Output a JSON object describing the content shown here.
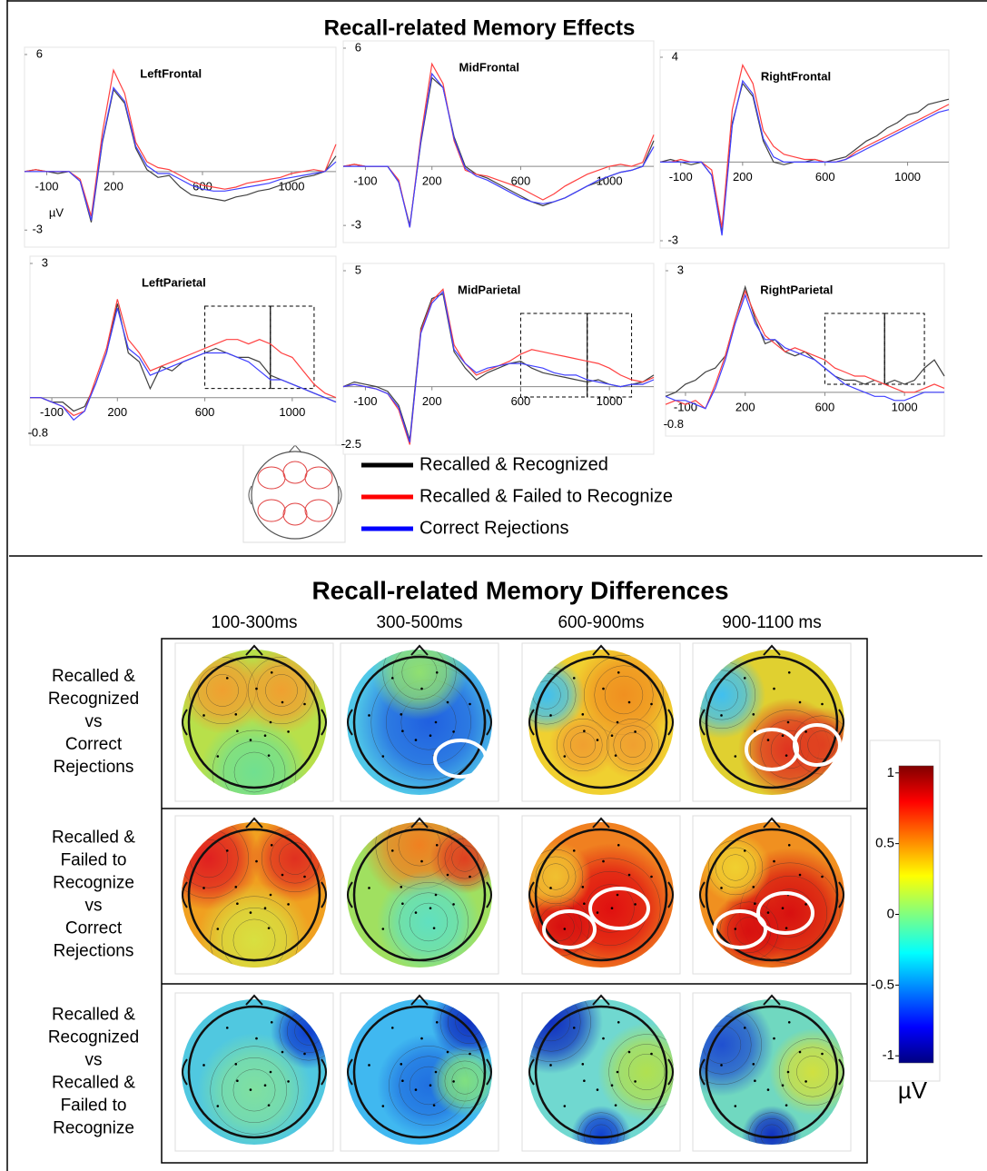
{
  "title": "Recall-related Memory Effects",
  "legend": [
    {
      "name": "Recalled & Recognized",
      "color": "#000000"
    },
    {
      "name": "Recalled & Failed to Recognize",
      "color": "#ff0000"
    },
    {
      "name": "Correct Rejections",
      "color": "#0000ff"
    }
  ],
  "chart_data": [
    {
      "type": "line",
      "title": "LeftFrontal",
      "y_label": "µV",
      "x": [
        -200,
        -150,
        -100,
        -50,
        0,
        50,
        100,
        150,
        200,
        250,
        300,
        350,
        400,
        450,
        500,
        550,
        600,
        650,
        700,
        750,
        800,
        850,
        900,
        950,
        1000,
        1050,
        1100,
        1150,
        1200
      ],
      "xlim": [
        -200,
        1200
      ],
      "xticks": [
        -100,
        200,
        600,
        1000
      ],
      "ylim": [
        -3.5,
        6
      ],
      "yticks": [
        6,
        -3
      ],
      "series": [
        {
          "color": "#404040",
          "values": [
            0,
            0.1,
            0,
            -0.1,
            0,
            -0.5,
            -2.6,
            1.5,
            4.2,
            3.5,
            1.2,
            0.1,
            -0.3,
            -0.2,
            -0.8,
            -1.2,
            -1.3,
            -1.4,
            -1.5,
            -1.3,
            -1.2,
            -1.0,
            -0.9,
            -0.7,
            -0.5,
            -0.3,
            -0.2,
            0,
            0.8
          ]
        },
        {
          "color": "#ff4040",
          "values": [
            0,
            0.1,
            0,
            0,
            0,
            -0.4,
            -2.3,
            2.0,
            5.2,
            4.0,
            1.5,
            0.5,
            0.2,
            0.1,
            -0.2,
            -0.5,
            -0.7,
            -0.8,
            -0.9,
            -0.8,
            -0.6,
            -0.5,
            -0.4,
            -0.3,
            -0.1,
            0,
            0.1,
            0,
            1.4
          ]
        },
        {
          "color": "#4040ff",
          "values": [
            0,
            0,
            0,
            0,
            0,
            -0.5,
            -2.5,
            1.6,
            4.3,
            3.6,
            1.3,
            0.3,
            -0.1,
            -0.1,
            -0.4,
            -0.7,
            -0.9,
            -1.0,
            -1.0,
            -0.9,
            -0.8,
            -0.7,
            -0.6,
            -0.4,
            -0.3,
            -0.2,
            -0.1,
            0,
            0.5
          ]
        }
      ]
    },
    {
      "type": "line",
      "title": "MidFrontal",
      "x": [
        -200,
        -150,
        -100,
        -50,
        0,
        50,
        100,
        150,
        200,
        250,
        300,
        350,
        400,
        450,
        500,
        550,
        600,
        650,
        700,
        750,
        800,
        850,
        900,
        950,
        1000,
        1050,
        1100,
        1150,
        1200
      ],
      "xlim": [
        -200,
        1200
      ],
      "xticks": [
        -100,
        200,
        600,
        1000
      ],
      "ylim": [
        -3.5,
        6
      ],
      "yticks": [
        6,
        -3
      ],
      "series": [
        {
          "color": "#404040",
          "values": [
            0,
            0.1,
            0,
            0,
            0,
            -0.8,
            -3.0,
            1.2,
            4.5,
            4.0,
            1.5,
            0,
            -0.4,
            -0.6,
            -0.9,
            -1.2,
            -1.5,
            -1.8,
            -2.0,
            -1.8,
            -1.6,
            -1.3,
            -1.0,
            -0.8,
            -0.5,
            -0.3,
            -0.2,
            0,
            1.3
          ]
        },
        {
          "color": "#ff4040",
          "values": [
            0,
            0.1,
            0,
            0,
            0,
            -0.7,
            -3.1,
            1.5,
            5.2,
            4.2,
            1.3,
            -0.2,
            -0.4,
            -0.5,
            -0.7,
            -0.9,
            -1.1,
            -1.4,
            -1.7,
            -1.4,
            -1.0,
            -0.7,
            -0.4,
            -0.2,
            0,
            0.1,
            0,
            0.2,
            1.6
          ]
        },
        {
          "color": "#4040ff",
          "values": [
            0,
            0,
            0,
            0,
            0,
            -0.8,
            -3.1,
            1.3,
            4.7,
            4.0,
            1.4,
            -0.1,
            -0.5,
            -0.7,
            -1.0,
            -1.3,
            -1.6,
            -1.8,
            -1.9,
            -1.8,
            -1.6,
            -1.3,
            -1.0,
            -0.7,
            -0.5,
            -0.3,
            -0.2,
            0,
            1.0
          ]
        }
      ]
    },
    {
      "type": "line",
      "title": "RightFrontal",
      "x": [
        -200,
        -150,
        -100,
        -50,
        0,
        50,
        100,
        150,
        200,
        250,
        300,
        350,
        400,
        450,
        500,
        550,
        600,
        650,
        700,
        750,
        800,
        850,
        900,
        950,
        1000,
        1050,
        1100,
        1150,
        1200
      ],
      "xlim": [
        -200,
        1200
      ],
      "xticks": [
        -100,
        200,
        600,
        1000
      ],
      "ylim": [
        -3,
        4
      ],
      "yticks": [
        4,
        -3
      ],
      "series": [
        {
          "color": "#404040",
          "values": [
            0,
            0.1,
            0,
            -0.1,
            0,
            -0.5,
            -2.7,
            1.5,
            3.0,
            2.5,
            0.8,
            0,
            -0.1,
            0,
            0,
            0.1,
            0,
            0.1,
            0.2,
            0.5,
            0.8,
            1.0,
            1.3,
            1.5,
            1.8,
            1.9,
            2.2,
            2.3,
            2.4
          ]
        },
        {
          "color": "#ff4040",
          "values": [
            0,
            0,
            0.1,
            0,
            0,
            -0.3,
            -2.5,
            2.0,
            3.7,
            3.0,
            1.2,
            0.6,
            0.3,
            0.2,
            0.1,
            0.1,
            0,
            0,
            0.1,
            0.4,
            0.6,
            0.8,
            1.0,
            1.2,
            1.4,
            1.6,
            1.8,
            2.0,
            2.2
          ]
        },
        {
          "color": "#4040ff",
          "values": [
            0,
            0,
            0,
            0,
            0,
            -0.5,
            -2.8,
            1.4,
            3.1,
            2.6,
            0.9,
            0.2,
            0,
            0,
            0,
            0,
            0,
            0,
            0.1,
            0.3,
            0.5,
            0.7,
            0.9,
            1.1,
            1.3,
            1.5,
            1.7,
            1.9,
            2.0
          ]
        }
      ]
    },
    {
      "type": "line",
      "title": "LeftParietal",
      "x": [
        -200,
        -150,
        -100,
        -50,
        0,
        50,
        100,
        150,
        200,
        250,
        300,
        350,
        400,
        450,
        500,
        550,
        600,
        650,
        700,
        750,
        800,
        850,
        900,
        950,
        1000,
        1050,
        1100,
        1150,
        1200
      ],
      "xlim": [
        -200,
        1200
      ],
      "xticks": [
        -100,
        200,
        600,
        1000
      ],
      "ylim": [
        -0.9,
        3
      ],
      "yticks": [
        3,
        -0.8
      ],
      "highlight_windows": [
        [
          600,
          900
        ],
        [
          900,
          1100
        ]
      ],
      "series": [
        {
          "color": "#404040",
          "values": [
            0,
            0,
            -0.1,
            -0.1,
            -0.3,
            -0.2,
            0.3,
            1.0,
            2.1,
            1.0,
            0.8,
            0.2,
            0.7,
            0.6,
            0.8,
            0.9,
            1.0,
            1.1,
            1.0,
            0.9,
            0.9,
            0.8,
            0.5,
            0.4,
            0.3,
            0.2,
            0.1,
            0,
            -0.1
          ]
        },
        {
          "color": "#ff4040",
          "values": [
            0,
            0,
            -0.1,
            -0.2,
            -0.4,
            -0.3,
            0.4,
            1.1,
            2.2,
            1.3,
            1.0,
            0.6,
            0.7,
            0.8,
            0.9,
            1.0,
            1.1,
            1.2,
            1.3,
            1.3,
            1.2,
            1.3,
            1.2,
            1.0,
            0.9,
            0.6,
            0.3,
            0.1,
            0
          ]
        },
        {
          "color": "#4040ff",
          "values": [
            0,
            0,
            -0.1,
            -0.2,
            -0.5,
            -0.3,
            0.3,
            1.0,
            2.0,
            1.1,
            0.9,
            0.5,
            0.6,
            0.7,
            0.8,
            0.9,
            1.0,
            1.0,
            1.0,
            0.9,
            0.8,
            0.6,
            0.4,
            0.4,
            0.3,
            0.2,
            0.1,
            0,
            -0.1
          ]
        }
      ]
    },
    {
      "type": "line",
      "title": "MidParietal",
      "x": [
        -200,
        -150,
        -100,
        -50,
        0,
        50,
        100,
        150,
        200,
        250,
        300,
        350,
        400,
        450,
        500,
        550,
        600,
        650,
        700,
        750,
        800,
        850,
        900,
        950,
        1000,
        1050,
        1100,
        1150,
        1200
      ],
      "xlim": [
        -200,
        1200
      ],
      "xticks": [
        -100,
        200,
        600,
        1000
      ],
      "ylim": [
        -2.6,
        5
      ],
      "yticks": [
        5,
        -2.5
      ],
      "highlight_windows": [
        [
          600,
          900
        ],
        [
          900,
          1100
        ]
      ],
      "series": [
        {
          "color": "#404040",
          "values": [
            0,
            0.2,
            0.1,
            0,
            -0.2,
            -0.8,
            -2.3,
            2.5,
            3.8,
            4.0,
            1.5,
            0.8,
            0.3,
            0.6,
            0.8,
            1.0,
            1.1,
            0.8,
            0.6,
            0.5,
            0.4,
            0.3,
            0.2,
            0.3,
            0.1,
            0,
            0.1,
            0.2,
            0.5
          ]
        },
        {
          "color": "#ff4040",
          "values": [
            0,
            0.1,
            0,
            -0.1,
            -0.3,
            -1.0,
            -2.5,
            2.4,
            3.7,
            4.2,
            1.8,
            1.0,
            0.5,
            0.7,
            0.9,
            1.1,
            1.4,
            1.6,
            1.5,
            1.4,
            1.3,
            1.2,
            1.1,
            1.0,
            0.8,
            0.5,
            0.3,
            0.2,
            0.4
          ]
        },
        {
          "color": "#4040ff",
          "values": [
            0,
            0.1,
            0,
            -0.1,
            -0.3,
            -0.9,
            -2.4,
            2.3,
            3.6,
            4.1,
            1.6,
            1.0,
            0.6,
            0.8,
            0.9,
            1.0,
            1.0,
            0.9,
            0.8,
            0.6,
            0.5,
            0.5,
            0.3,
            0.2,
            0.1,
            0,
            0.1,
            0.1,
            0.3
          ]
        }
      ]
    },
    {
      "type": "line",
      "title": "RightParietal",
      "x": [
        -200,
        -150,
        -100,
        -50,
        0,
        50,
        100,
        150,
        200,
        250,
        300,
        350,
        400,
        450,
        500,
        550,
        600,
        650,
        700,
        750,
        800,
        850,
        900,
        950,
        1000,
        1050,
        1100,
        1150,
        1200
      ],
      "xlim": [
        -200,
        1200
      ],
      "xticks": [
        -100,
        200,
        600,
        1000
      ],
      "ylim": [
        -0.9,
        3
      ],
      "yticks": [
        3,
        -0.8
      ],
      "highlight_windows": [
        [
          600,
          900
        ],
        [
          900,
          1100
        ]
      ],
      "series": [
        {
          "color": "#404040",
          "values": [
            -0.1,
            0,
            0.2,
            0.3,
            0.5,
            0.6,
            0.9,
            1.8,
            2.6,
            1.8,
            1.2,
            1.3,
            1.0,
            0.9,
            1.0,
            0.8,
            0.6,
            0.4,
            0.3,
            0.3,
            0.2,
            0.3,
            0.2,
            0.3,
            0.2,
            0.3,
            0.6,
            0.8,
            0.4
          ]
        },
        {
          "color": "#ff4040",
          "values": [
            -0.3,
            -0.2,
            -0.3,
            -0.2,
            -0.4,
            0.2,
            0.9,
            1.8,
            2.5,
            1.9,
            1.4,
            1.2,
            1.0,
            1.1,
            1.0,
            0.9,
            0.8,
            0.6,
            0.5,
            0.4,
            0.4,
            0.3,
            0.2,
            0.1,
            0,
            0,
            0.1,
            0.2,
            0.1
          ]
        },
        {
          "color": "#4040ff",
          "values": [
            -0.1,
            -0.2,
            -0.2,
            -0.3,
            -0.4,
            0.1,
            0.8,
            1.7,
            2.4,
            1.7,
            1.3,
            1.3,
            1.1,
            1.0,
            0.9,
            0.8,
            0.6,
            0.4,
            0.2,
            0.1,
            0,
            -0.1,
            -0.1,
            -0.2,
            -0.2,
            -0.1,
            0,
            0,
            0
          ]
        }
      ]
    }
  ],
  "differences": {
    "title": "Recall-related Memory Differences",
    "columns": [
      "100-300ms",
      "300-500ms",
      "600-900ms",
      "900-1100 ms"
    ],
    "row_labels": [
      [
        "Recalled &",
        "Recognized",
        "vs",
        "Correct",
        "Rejections"
      ],
      [
        "Recalled &",
        "Failed to",
        "Recognize",
        "vs",
        "Correct",
        "Rejections"
      ],
      [
        "Recalled &",
        "Recognized",
        "vs",
        "Recalled &",
        "Failed to",
        "Recognize"
      ]
    ],
    "colorbar": {
      "lim": [
        -1.05,
        1.05
      ],
      "ticks": [
        1,
        0.5,
        0,
        -0.5,
        -1
      ],
      "unit": "µV"
    }
  }
}
